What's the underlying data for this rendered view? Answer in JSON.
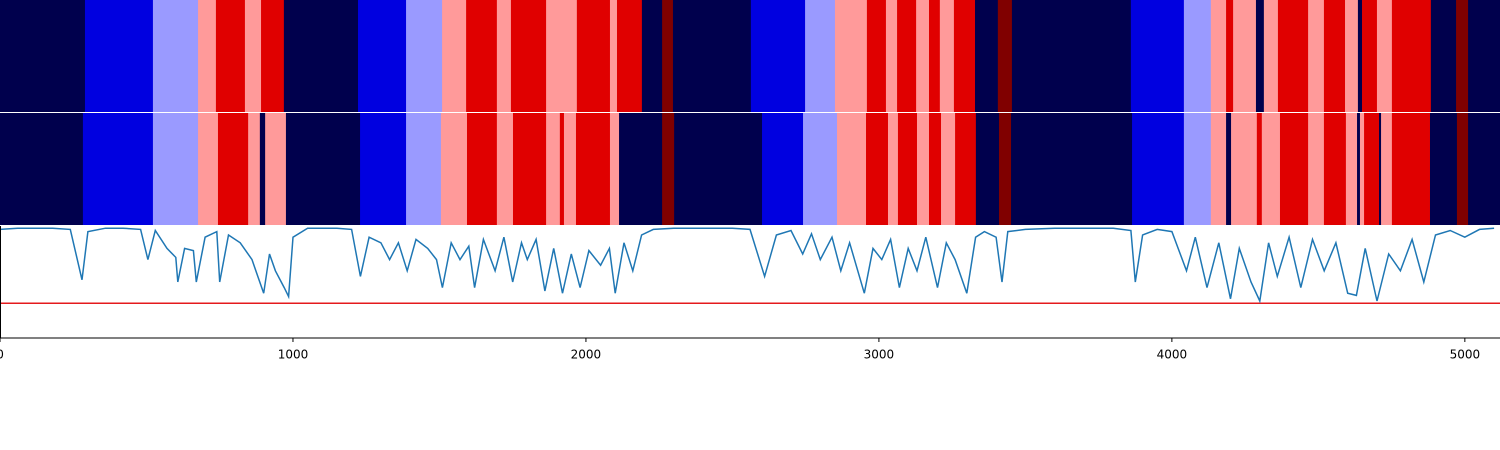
{
  "chart_data": [
    {
      "type": "segments",
      "xlim": [
        0,
        5120
      ],
      "edges": [
        0,
        290,
        522,
        676,
        737,
        836,
        891,
        969,
        1222,
        1386,
        1509,
        1591,
        1696,
        1744,
        1864,
        1969,
        2082,
        2106,
        2191,
        2260,
        2297,
        2563,
        2748,
        2850,
        2959,
        3024,
        3062,
        3127,
        3171,
        3208,
        3256,
        3328,
        3406,
        3454,
        3860,
        4041,
        4133,
        4185,
        4209,
        4287,
        4314,
        4362,
        4465,
        4519,
        4591,
        4635,
        4649,
        4700,
        4751,
        4884,
        4970,
        5011,
        5120
      ],
      "colors": [
        "#00004d",
        "#0000e0",
        "#9a9aff",
        "#ff9a9a",
        "#e00000",
        "#ff9a9a",
        "#e00000",
        "#00004d",
        "#0000e0",
        "#9a9aff",
        "#ff9a9a",
        "#e00000",
        "#ff9a9a",
        "#e00000",
        "#ff9a9a",
        "#e00000",
        "#ff9a9a",
        "#e00000",
        "#00004d",
        "#800000",
        "#00004d",
        "#0000e0",
        "#9a9aff",
        "#ff9a9a",
        "#e00000",
        "#ff9a9a",
        "#e00000",
        "#ff9a9a",
        "#e00000",
        "#ff9a9a",
        "#e00000",
        "#00004d",
        "#800000",
        "#00004d",
        "#0000e0",
        "#9a9aff",
        "#ff9a9a",
        "#e00000",
        "#ff9a9a",
        "#00004d",
        "#ff9a9a",
        "#e00000",
        "#ff9a9a",
        "#e00000",
        "#ff9a9a",
        "#00004d",
        "#e00000",
        "#ff9a9a",
        "#e00000",
        "#00004d",
        "#800000",
        "#00004d"
      ]
    },
    {
      "type": "segments",
      "xlim": [
        0,
        5120
      ],
      "edges": [
        0,
        283,
        522,
        676,
        744,
        847,
        887,
        905,
        976,
        1229,
        1386,
        1505,
        1594,
        1696,
        1751,
        1864,
        1911,
        1925,
        1966,
        2082,
        2113,
        2260,
        2301,
        2601,
        2741,
        2857,
        2956,
        3031,
        3065,
        3130,
        3171,
        3212,
        3260,
        3331,
        3410,
        3451,
        3864,
        4041,
        4133,
        4185,
        4202,
        4290,
        4307,
        4369,
        4465,
        4519,
        4594,
        4632,
        4642,
        4656,
        4707,
        4714,
        4751,
        4881,
        4973,
        5011,
        5120
      ],
      "colors": [
        "#00004d",
        "#0000e0",
        "#9a9aff",
        "#ff9a9a",
        "#e00000",
        "#ff9a9a",
        "#00004d",
        "#ff9a9a",
        "#00004d",
        "#0000e0",
        "#9a9aff",
        "#ff9a9a",
        "#e00000",
        "#ff9a9a",
        "#e00000",
        "#ff9a9a",
        "#e00000",
        "#ff9a9a",
        "#e00000",
        "#ff9a9a",
        "#00004d",
        "#800000",
        "#00004d",
        "#0000e0",
        "#9a9aff",
        "#ff9a9a",
        "#e00000",
        "#ff9a9a",
        "#e00000",
        "#ff9a9a",
        "#e00000",
        "#ff9a9a",
        "#e00000",
        "#00004d",
        "#800000",
        "#00004d",
        "#0000e0",
        "#9a9aff",
        "#ff9a9a",
        "#00004d",
        "#ff9a9a",
        "#e00000",
        "#ff9a9a",
        "#e00000",
        "#ff9a9a",
        "#e00000",
        "#ff9a9a",
        "#00004d",
        "#ff9a9a",
        "#e00000",
        "#00004d",
        "#ff9a9a",
        "#e00000",
        "#00004d",
        "#800000",
        "#00004d"
      ]
    },
    {
      "type": "line",
      "xlim": [
        0,
        5120
      ],
      "ylim": [
        0,
        1
      ],
      "xticks": [
        0,
        1000,
        2000,
        3000,
        4000,
        5000
      ],
      "color": "#1f77b4",
      "threshold": 0.31,
      "threshold_color": "#e41a1c",
      "x": [
        0,
        60,
        120,
        180,
        240,
        280,
        300,
        360,
        420,
        480,
        505,
        530,
        570,
        600,
        607,
        630,
        660,
        670,
        700,
        740,
        750,
        780,
        820,
        860,
        880,
        900,
        920,
        940,
        970,
        985,
        1000,
        1050,
        1100,
        1150,
        1200,
        1230,
        1260,
        1300,
        1330,
        1360,
        1390,
        1420,
        1460,
        1490,
        1510,
        1540,
        1570,
        1600,
        1620,
        1650,
        1690,
        1720,
        1750,
        1780,
        1800,
        1830,
        1860,
        1890,
        1920,
        1950,
        1980,
        2010,
        2050,
        2080,
        2100,
        2130,
        2160,
        2190,
        2230,
        2300,
        2400,
        2500,
        2560,
        2610,
        2650,
        2700,
        2740,
        2770,
        2800,
        2840,
        2870,
        2900,
        2950,
        2980,
        3010,
        3040,
        3070,
        3100,
        3130,
        3160,
        3200,
        3230,
        3260,
        3300,
        3330,
        3360,
        3400,
        3420,
        3440,
        3500,
        3600,
        3700,
        3800,
        3860,
        3875,
        3900,
        3950,
        4000,
        4050,
        4080,
        4120,
        4160,
        4200,
        4230,
        4270,
        4300,
        4330,
        4360,
        4400,
        4440,
        4480,
        4520,
        4560,
        4600,
        4630,
        4660,
        4700,
        4740,
        4780,
        4820,
        4860,
        4900,
        4950,
        5000,
        5050,
        5100
      ],
      "values": [
        0.97,
        0.98,
        0.98,
        0.98,
        0.97,
        0.52,
        0.95,
        0.98,
        0.98,
        0.97,
        0.7,
        0.96,
        0.8,
        0.72,
        0.5,
        0.8,
        0.78,
        0.5,
        0.9,
        0.95,
        0.5,
        0.92,
        0.85,
        0.7,
        0.55,
        0.4,
        0.75,
        0.6,
        0.45,
        0.37,
        0.9,
        0.98,
        0.98,
        0.98,
        0.97,
        0.55,
        0.9,
        0.85,
        0.7,
        0.85,
        0.6,
        0.88,
        0.8,
        0.7,
        0.45,
        0.85,
        0.7,
        0.82,
        0.45,
        0.88,
        0.6,
        0.9,
        0.5,
        0.85,
        0.7,
        0.88,
        0.42,
        0.8,
        0.4,
        0.75,
        0.45,
        0.78,
        0.65,
        0.8,
        0.4,
        0.85,
        0.6,
        0.92,
        0.97,
        0.98,
        0.98,
        0.98,
        0.97,
        0.55,
        0.92,
        0.96,
        0.75,
        0.93,
        0.7,
        0.9,
        0.6,
        0.85,
        0.4,
        0.8,
        0.7,
        0.88,
        0.45,
        0.8,
        0.6,
        0.9,
        0.45,
        0.85,
        0.7,
        0.4,
        0.9,
        0.95,
        0.9,
        0.5,
        0.95,
        0.97,
        0.98,
        0.98,
        0.98,
        0.96,
        0.5,
        0.92,
        0.97,
        0.95,
        0.6,
        0.9,
        0.45,
        0.85,
        0.35,
        0.8,
        0.5,
        0.33,
        0.85,
        0.55,
        0.9,
        0.45,
        0.88,
        0.6,
        0.85,
        0.4,
        0.38,
        0.8,
        0.33,
        0.75,
        0.6,
        0.88,
        0.5,
        0.92,
        0.96,
        0.9,
        0.97,
        0.98
      ]
    }
  ]
}
